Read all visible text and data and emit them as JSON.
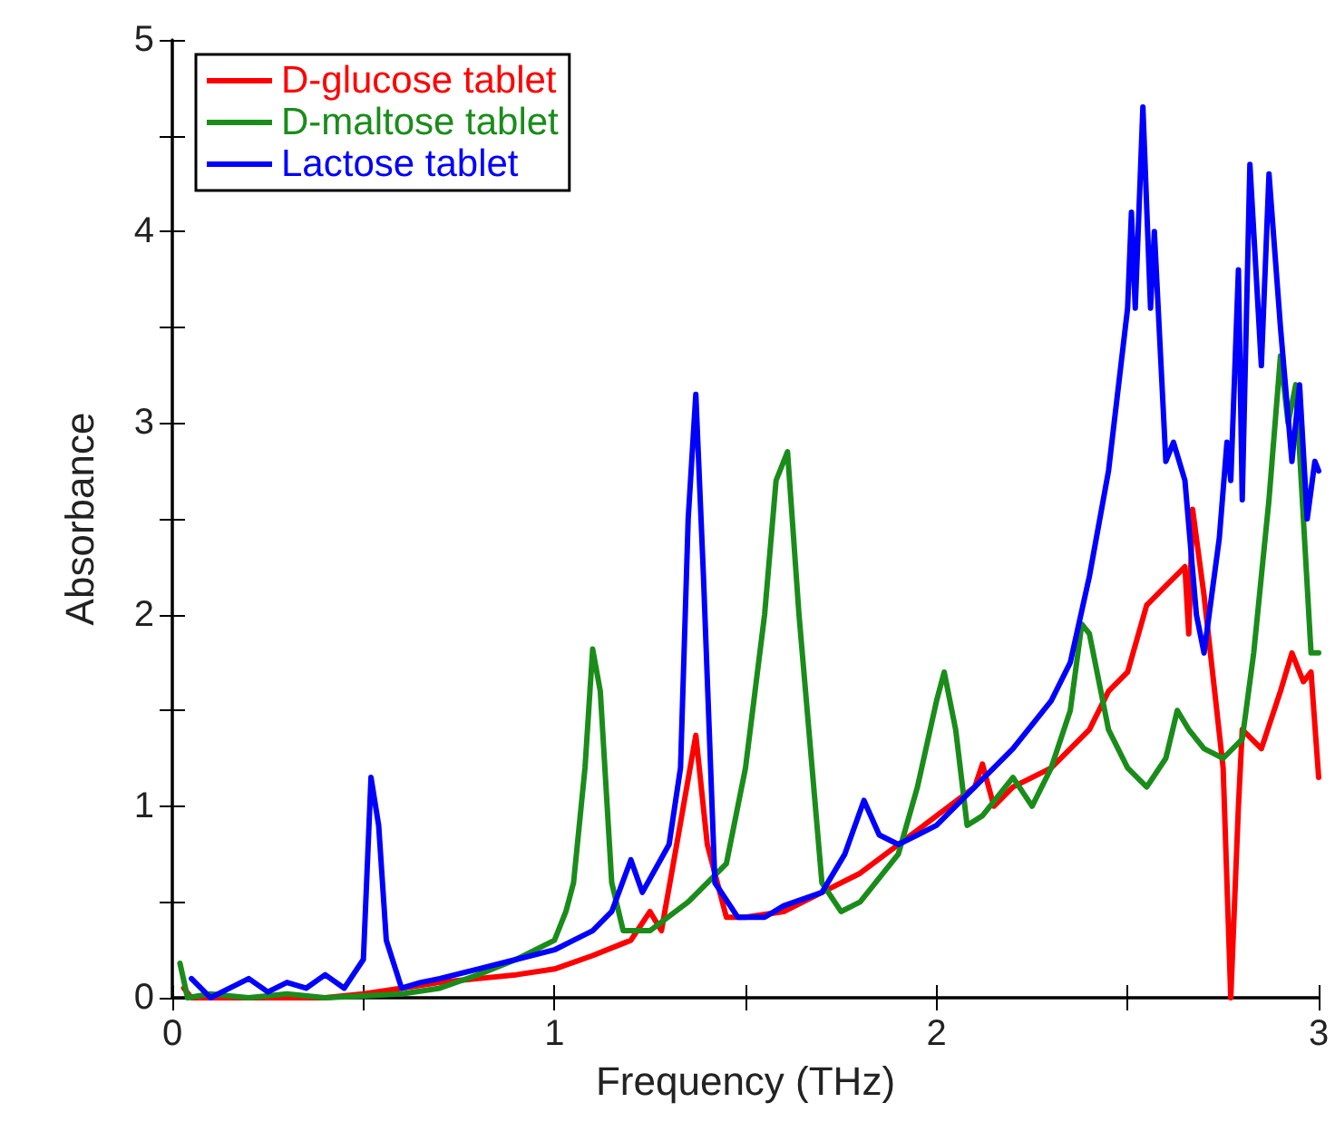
{
  "chart_data": {
    "type": "line",
    "xlabel": "Frequency (THz)",
    "ylabel": "Absorbance",
    "xlim": [
      0,
      3
    ],
    "ylim": [
      0,
      5
    ],
    "xticks": [
      0,
      {
        "value": 0.5,
        "label": null
      },
      1,
      {
        "value": 1.5,
        "label": null
      },
      2,
      {
        "value": 2.5,
        "label": null
      },
      3
    ],
    "yticks": [
      0,
      {
        "value": 0.5,
        "label": null
      },
      1,
      {
        "value": 1.5,
        "label": null
      },
      2,
      {
        "value": 2.5,
        "label": null
      },
      3,
      {
        "value": 3.5,
        "label": null
      },
      4,
      {
        "value": 4.5,
        "label": null
      },
      5
    ],
    "grid": false,
    "legend": "top left",
    "marker": "none",
    "line_style": "solid",
    "series": [
      {
        "name": "D-glucose tablet",
        "color": "#ff0000",
        "x": [
          0.03,
          0.05,
          0.2,
          0.4,
          0.5,
          0.6,
          0.7,
          0.8,
          0.9,
          1.0,
          1.1,
          1.2,
          1.25,
          1.28,
          1.32,
          1.37,
          1.4,
          1.45,
          1.5,
          1.6,
          1.7,
          1.8,
          1.9,
          2.0,
          2.1,
          2.12,
          2.15,
          2.2,
          2.3,
          2.4,
          2.45,
          2.5,
          2.55,
          2.6,
          2.65,
          2.66,
          2.67,
          2.7,
          2.75,
          2.77,
          2.79,
          2.8,
          2.85,
          2.9,
          2.93,
          2.96,
          2.98,
          3.0
        ],
        "values": [
          0.05,
          0,
          0,
          0,
          0.02,
          0.05,
          0.08,
          0.1,
          0.12,
          0.15,
          0.22,
          0.3,
          0.45,
          0.35,
          0.8,
          1.37,
          0.8,
          0.42,
          0.42,
          0.45,
          0.55,
          0.65,
          0.8,
          0.95,
          1.1,
          1.22,
          1.0,
          1.1,
          1.2,
          1.4,
          1.6,
          1.7,
          2.05,
          2.15,
          2.25,
          1.9,
          2.55,
          2.1,
          1.2,
          0,
          1.0,
          1.4,
          1.3,
          1.6,
          1.8,
          1.65,
          1.7,
          1.15
        ]
      },
      {
        "name": "D-maltose tablet",
        "color": "#1a8c1a",
        "x": [
          0.02,
          0.04,
          0.1,
          0.2,
          0.3,
          0.4,
          0.5,
          0.6,
          0.7,
          0.8,
          0.9,
          1.0,
          1.03,
          1.05,
          1.08,
          1.1,
          1.12,
          1.15,
          1.18,
          1.25,
          1.35,
          1.45,
          1.5,
          1.55,
          1.58,
          1.61,
          1.64,
          1.7,
          1.75,
          1.8,
          1.9,
          1.95,
          2.0,
          2.02,
          2.05,
          2.08,
          2.12,
          2.2,
          2.25,
          2.3,
          2.35,
          2.38,
          2.4,
          2.45,
          2.5,
          2.55,
          2.6,
          2.63,
          2.66,
          2.7,
          2.75,
          2.8,
          2.83,
          2.87,
          2.9,
          2.92,
          2.94,
          2.96,
          2.98,
          3.0
        ],
        "values": [
          0.18,
          0,
          0.02,
          0,
          0.02,
          0,
          0.01,
          0.02,
          0.05,
          0.12,
          0.2,
          0.3,
          0.45,
          0.6,
          1.2,
          1.82,
          1.6,
          0.6,
          0.35,
          0.35,
          0.5,
          0.7,
          1.2,
          2.0,
          2.7,
          2.85,
          2.0,
          0.6,
          0.45,
          0.5,
          0.75,
          1.1,
          1.55,
          1.7,
          1.4,
          0.9,
          0.95,
          1.15,
          1.0,
          1.2,
          1.5,
          1.95,
          1.9,
          1.4,
          1.2,
          1.1,
          1.25,
          1.5,
          1.4,
          1.3,
          1.25,
          1.35,
          1.8,
          2.6,
          3.35,
          3.0,
          3.2,
          2.5,
          1.8,
          1.8
        ]
      },
      {
        "name": "Lactose tablet",
        "color": "#0000ff",
        "x": [
          0.05,
          0.1,
          0.15,
          0.2,
          0.25,
          0.3,
          0.35,
          0.4,
          0.45,
          0.5,
          0.52,
          0.54,
          0.56,
          0.6,
          0.65,
          0.7,
          0.8,
          0.9,
          1.0,
          1.05,
          1.1,
          1.15,
          1.2,
          1.23,
          1.3,
          1.33,
          1.35,
          1.37,
          1.39,
          1.42,
          1.48,
          1.55,
          1.6,
          1.7,
          1.76,
          1.81,
          1.85,
          1.9,
          2.0,
          2.1,
          2.2,
          2.3,
          2.35,
          2.4,
          2.45,
          2.5,
          2.51,
          2.52,
          2.54,
          2.56,
          2.57,
          2.6,
          2.62,
          2.65,
          2.68,
          2.7,
          2.74,
          2.76,
          2.77,
          2.79,
          2.8,
          2.82,
          2.85,
          2.87,
          2.9,
          2.93,
          2.95,
          2.97,
          2.99,
          3.0
        ],
        "values": [
          0.1,
          0,
          0.05,
          0.1,
          0.03,
          0.08,
          0.05,
          0.12,
          0.05,
          0.2,
          1.15,
          0.9,
          0.3,
          0.05,
          0.08,
          0.1,
          0.15,
          0.2,
          0.25,
          0.3,
          0.35,
          0.45,
          0.72,
          0.55,
          0.8,
          1.2,
          2.5,
          3.15,
          2.2,
          0.6,
          0.42,
          0.42,
          0.48,
          0.55,
          0.75,
          1.03,
          0.85,
          0.8,
          0.9,
          1.1,
          1.3,
          1.55,
          1.75,
          2.2,
          2.75,
          3.6,
          4.1,
          3.6,
          4.65,
          3.6,
          4.0,
          2.8,
          2.9,
          2.7,
          2.0,
          1.8,
          2.4,
          2.9,
          2.7,
          3.8,
          2.6,
          4.35,
          3.3,
          4.3,
          3.5,
          2.8,
          3.2,
          2.5,
          2.8,
          2.75
        ]
      }
    ]
  }
}
